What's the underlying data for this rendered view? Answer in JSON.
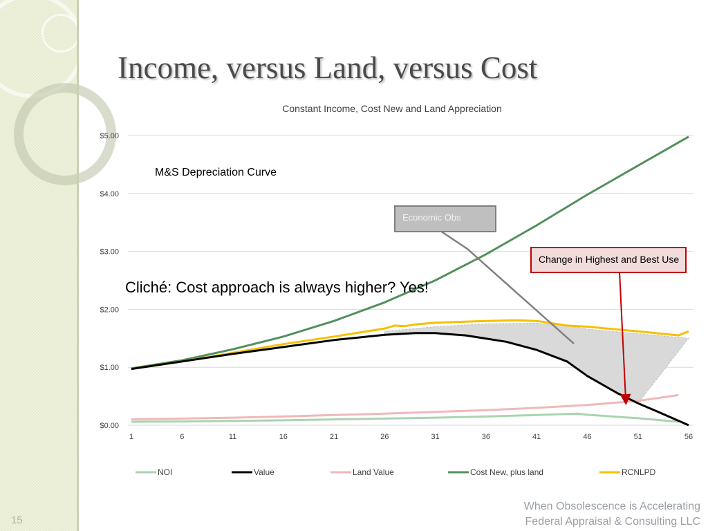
{
  "page": {
    "title": "Income, versus Land, versus Cost",
    "page_number": "15",
    "footer_line1": "When Obsolescence is Accelerating",
    "footer_line2": "Federal Appraisal & Consulting LLC"
  },
  "annotations": {
    "economic_obs": "Economic Obs",
    "highest_best_use": "Change in Highest and Best Use",
    "ms_curve": "M&S Depreciation Curve",
    "cliche": "Cliché: Cost approach is always higher?  Yes!"
  },
  "colors": {
    "noi": "#a9d4b0",
    "value": "#000000",
    "land": "#f0b8b8",
    "cost": "#548f5c",
    "rcnlpd": "#f5c000",
    "grid": "#d9d9d9",
    "fill": "#d9d9d9",
    "hbu_border": "#c00000",
    "econ_box": "#bfbfbf"
  },
  "chart_data": {
    "type": "line",
    "title": "Constant Income, Cost New and Land Appreciation",
    "x_ticks": [
      1,
      6,
      11,
      16,
      21,
      26,
      31,
      36,
      41,
      46,
      51,
      56
    ],
    "y_ticks": [
      "$0.00",
      "$1.00",
      "$2.00",
      "$3.00",
      "$4.00",
      "$5.00"
    ],
    "xlim": [
      1,
      56
    ],
    "ylim": [
      0,
      5
    ],
    "grid": true,
    "legend_position": "bottom",
    "series": [
      {
        "name": "NOI",
        "key": "noi",
        "x": [
          1,
          6,
          11,
          16,
          21,
          26,
          31,
          36,
          41,
          45,
          46,
          51,
          55
        ],
        "y": [
          0.06,
          0.065,
          0.075,
          0.085,
          0.1,
          0.115,
          0.13,
          0.15,
          0.175,
          0.2,
          0.18,
          0.12,
          0.06
        ]
      },
      {
        "name": "Value",
        "key": "value",
        "x": [
          1,
          6,
          11,
          16,
          21,
          26,
          29,
          31,
          34,
          38,
          41,
          44,
          46,
          49,
          51,
          53,
          56
        ],
        "y": [
          0.97,
          1.1,
          1.23,
          1.35,
          1.47,
          1.56,
          1.59,
          1.59,
          1.55,
          1.44,
          1.3,
          1.1,
          0.85,
          0.55,
          0.38,
          0.23,
          0.0
        ]
      },
      {
        "name": "Land Value",
        "key": "land",
        "x": [
          1,
          6,
          11,
          16,
          21,
          26,
          31,
          36,
          41,
          46,
          51,
          55
        ],
        "y": [
          0.1,
          0.115,
          0.13,
          0.15,
          0.175,
          0.2,
          0.23,
          0.26,
          0.3,
          0.35,
          0.42,
          0.52
        ]
      },
      {
        "name": "Cost New, plus land",
        "key": "cost",
        "x": [
          1,
          6,
          11,
          16,
          21,
          26,
          31,
          36,
          41,
          46,
          51,
          56
        ],
        "y": [
          0.98,
          1.12,
          1.31,
          1.53,
          1.8,
          2.12,
          2.5,
          2.95,
          3.45,
          3.98,
          4.48,
          4.98
        ]
      },
      {
        "name": "RCNLPD",
        "key": "rcnlpd",
        "x": [
          1,
          6,
          11,
          16,
          21,
          26,
          27,
          28,
          29,
          31,
          36,
          39,
          41,
          44,
          46,
          51,
          55,
          56
        ],
        "y": [
          0.97,
          1.1,
          1.25,
          1.4,
          1.53,
          1.67,
          1.72,
          1.71,
          1.74,
          1.77,
          1.8,
          1.81,
          1.8,
          1.72,
          1.7,
          1.62,
          1.55,
          1.62
        ]
      }
    ],
    "shaded_region": {
      "x": [
        26,
        31,
        36,
        41,
        44,
        46,
        51,
        56
      ],
      "upper": [
        1.62,
        1.7,
        1.75,
        1.76,
        1.72,
        1.66,
        1.58,
        1.5
      ],
      "lower": [
        1.56,
        1.59,
        1.52,
        1.3,
        1.1,
        0.85,
        0.38,
        1.5
      ]
    }
  }
}
